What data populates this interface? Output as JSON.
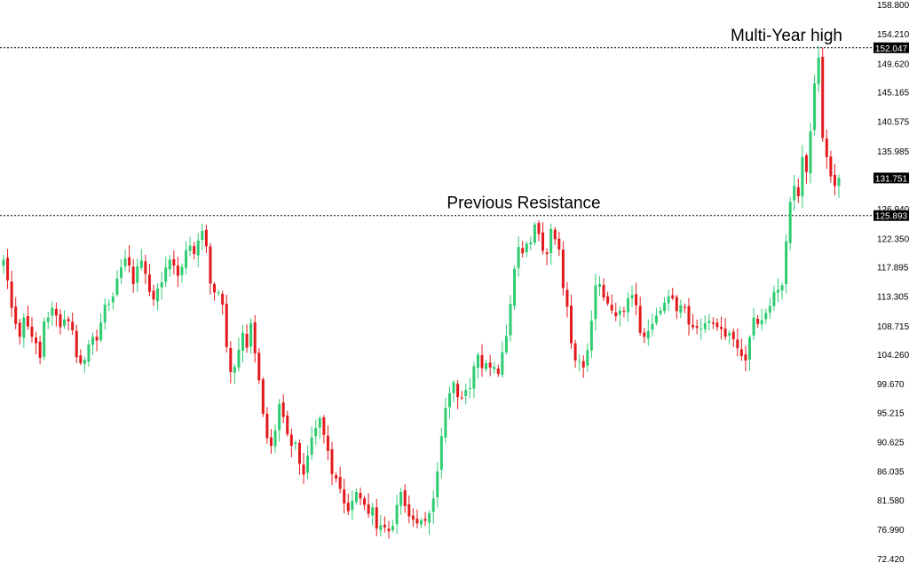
{
  "chart_data": {
    "type": "candlestick",
    "title": "",
    "xlabel": "",
    "ylabel": "",
    "ylim": [
      72.42,
      158.8
    ],
    "y_axis_position": "right",
    "grid": false,
    "colors": {
      "up": "#2ecc71",
      "down": "#e31a1c",
      "level_line": "#000000",
      "badge_bg": "#000000",
      "badge_text": "#ffffff",
      "background": "#ffffff"
    },
    "y_ticks": [
      "158.800",
      "154.210",
      "149.620",
      "145.165",
      "140.575",
      "135.985",
      "126.940",
      "122.350",
      "117.895",
      "113.305",
      "108.715",
      "104.260",
      "99.670",
      "95.215",
      "90.625",
      "86.035",
      "81.580",
      "76.990",
      "72.420"
    ],
    "levels": [
      {
        "value": 152.047,
        "label": "Multi-Year high",
        "badge": "152.047",
        "style": "dotted"
      },
      {
        "value": 125.893,
        "label": "Previous Resistance",
        "badge": "125.893",
        "style": "dotted"
      }
    ],
    "current_price": {
      "value": 131.751,
      "badge": "131.751"
    },
    "close": [
      119.0,
      115.8,
      111.5,
      109.0,
      107.0,
      110.0,
      108.6,
      107.0,
      106.0,
      103.7,
      109.4,
      110.0,
      111.5,
      110.3,
      108.5,
      109.7,
      109.4,
      108.0,
      103.8,
      102.9,
      103.4,
      105.8,
      107.0,
      106.4,
      109.2,
      112.0,
      112.1,
      113.3,
      116.1,
      117.8,
      119.2,
      118.1,
      115.2,
      118.0,
      118.9,
      116.8,
      114.0,
      112.8,
      114.5,
      115.5,
      117.8,
      119.0,
      118.1,
      116.5,
      117.9,
      120.5,
      121.2,
      119.9,
      122.0,
      123.5,
      121.1,
      115.3,
      113.9,
      113.9,
      112.0,
      105.4,
      101.5,
      102.3,
      105.0,
      107.6,
      105.3,
      109.1,
      104.4,
      100.2,
      95.0,
      91.2,
      90.0,
      92.4,
      96.5,
      94.5,
      91.8,
      90.0,
      90.5,
      87.2,
      85.5,
      88.5,
      91.3,
      92.8,
      94.3,
      91.7,
      89.2,
      85.6,
      84.9,
      83.3,
      81.0,
      79.8,
      81.4,
      82.8,
      81.8,
      80.8,
      79.4,
      80.4,
      77.1,
      77.6,
      77.3,
      76.7,
      77.5,
      80.8,
      82.8,
      80.6,
      79.0,
      78.5,
      77.9,
      78.4,
      78.3,
      79.5,
      81.8,
      86.0,
      91.5,
      95.9,
      98.2,
      99.9,
      97.6,
      97.5,
      98.7,
      99.0,
      102.4,
      104.2,
      102.1,
      102.9,
      102.2,
      102.3,
      101.2,
      104.6,
      107.1,
      112.1,
      117.6,
      121.0,
      120.0,
      121.5,
      121.7,
      124.5,
      123.0,
      120.4,
      119.9,
      123.8,
      122.2,
      120.6,
      114.6,
      111.7,
      106.0,
      103.3,
      103.2,
      102.2,
      104.9,
      109.5,
      115.0,
      115.2,
      113.1,
      112.2,
      111.1,
      110.2,
      111.1,
      111.0,
      113.0,
      113.5,
      111.9,
      107.6,
      107.0,
      107.9,
      109.0,
      110.3,
      111.1,
      112.3,
      113.3,
      113.0,
      111.0,
      111.9,
      111.5,
      108.9,
      108.5,
      108.4,
      108.3,
      109.1,
      109.5,
      109.0,
      108.5,
      108.2,
      107.0,
      107.6,
      106.6,
      105.2,
      104.0,
      103.3,
      106.9,
      110.0,
      109.0,
      109.6,
      110.7,
      111.8,
      114.0,
      114.3,
      115.0,
      121.9,
      128.0,
      130.5,
      128.9,
      135.0,
      132.7,
      139.0,
      146.5,
      150.5,
      138.0,
      135.0,
      132.0,
      130.5,
      131.751
    ]
  }
}
